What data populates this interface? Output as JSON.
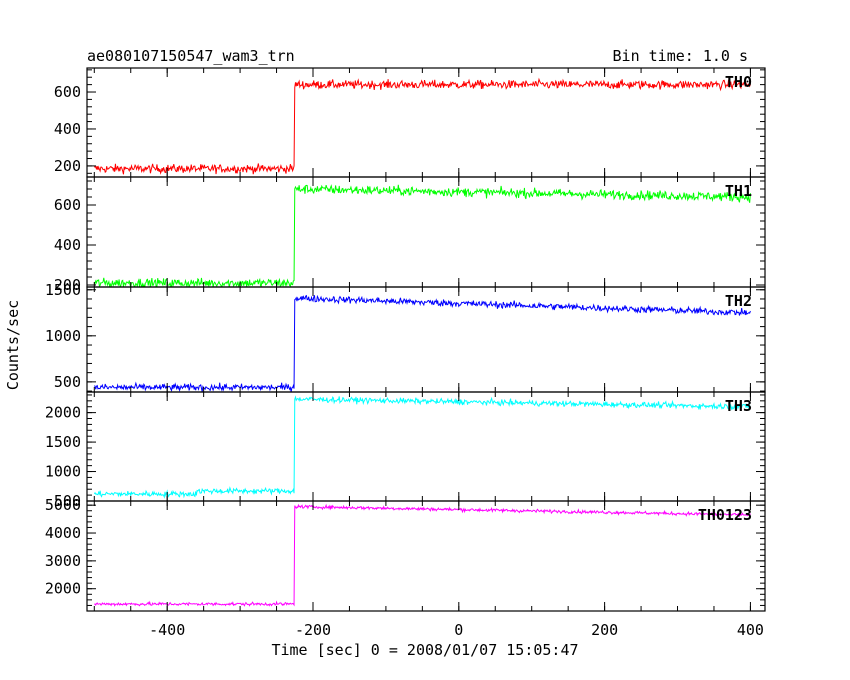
{
  "header": {
    "title": "ae080107150547_wam3_trn",
    "bin_time": "Bin time: 1.0 s"
  },
  "chart_data": {
    "type": "line",
    "xlabel": "Time [sec] 0 = 2008/01/07 15:05:47",
    "ylabel": "Counts/sec",
    "xlim": [
      -510,
      420
    ],
    "xticks": [
      -400,
      -200,
      0,
      200,
      400
    ],
    "step_time": -225,
    "panels": [
      {
        "name": "TH0",
        "color": "#ff0000",
        "ylim": [
          140,
          730
        ],
        "yticks": [
          200,
          400,
          600
        ],
        "pre_level": 185,
        "post_level": 640,
        "post_end_level": 640,
        "noise": 22
      },
      {
        "name": "TH1",
        "color": "#00ff00",
        "ylim": [
          190,
          740
        ],
        "yticks": [
          200,
          400,
          600
        ],
        "pre_level": 210,
        "post_level": 680,
        "post_end_level": 640,
        "noise": 22
      },
      {
        "name": "TH2",
        "color": "#0000ff",
        "ylim": [
          390,
          1530
        ],
        "yticks": [
          500,
          1000,
          1500
        ],
        "pre_level": 440,
        "post_level": 1410,
        "post_end_level": 1250,
        "noise": 35
      },
      {
        "name": "TH3",
        "color": "#00ffff",
        "ylim": [
          500,
          2350
        ],
        "yticks": [
          500,
          1000,
          1500,
          2000
        ],
        "pre_level": 620,
        "post_level": 2230,
        "post_end_level": 2100,
        "noise": 45
      },
      {
        "name": "TH0123",
        "color": "#ff00ff",
        "ylim": [
          1200,
          5150
        ],
        "yticks": [
          2000,
          3000,
          4000,
          5000
        ],
        "pre_level": 1450,
        "post_level": 4950,
        "post_end_level": 4650,
        "noise": 55
      }
    ]
  }
}
